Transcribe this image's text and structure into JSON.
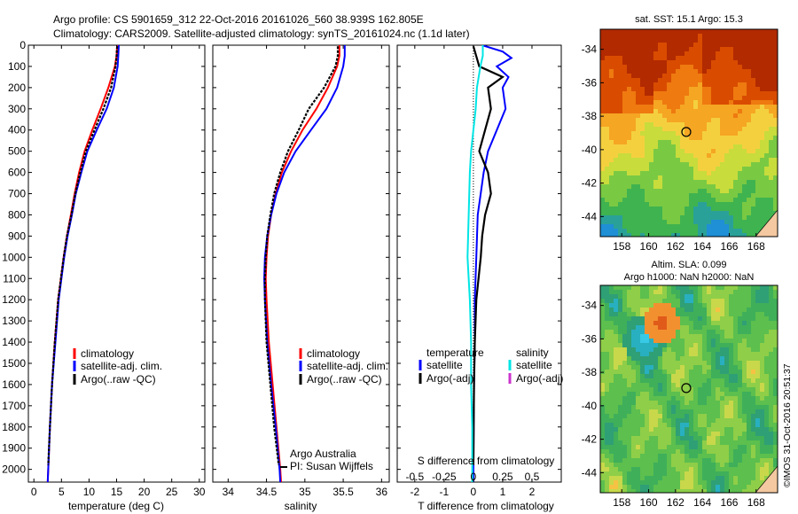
{
  "header": {
    "line1": "Argo profile: CS 5901659_312 22-Oct-2016 20161026_560 38.939S 162.805E",
    "line2": "Climatology: CARS2009. Satellite-adjusted climatology: synTS_20161024.nc (1.1d later)"
  },
  "colors": {
    "climatology": "#ff0000",
    "satellite": "#0000ff",
    "argo": "#000000",
    "s_satellite": "#00e5e5",
    "s_argo": "#cc33cc"
  },
  "chart_data": [
    {
      "type": "line",
      "name": "temperature-panel",
      "xlabel": "temperature (deg C)",
      "xlim": [
        -1,
        31
      ],
      "xticks": [
        0,
        5,
        10,
        15,
        20,
        25,
        30
      ],
      "ylim": [
        2060,
        0
      ],
      "yticks": [
        0,
        100,
        200,
        300,
        400,
        500,
        600,
        700,
        800,
        900,
        1000,
        1100,
        1200,
        1300,
        1400,
        1500,
        1600,
        1700,
        1800,
        1900,
        2000
      ],
      "legend": {
        "position": "lower-center",
        "entries": [
          "climatology",
          "satellite-adj. clim.",
          "Argo(..raw -QC)"
        ]
      },
      "series": [
        {
          "name": "climatology",
          "color": "#ff0000",
          "depth": [
            0,
            50,
            100,
            200,
            300,
            400,
            500,
            600,
            700,
            800,
            900,
            1000,
            1200,
            1400,
            1600,
            1800,
            2000,
            2060
          ],
          "values": [
            15.1,
            15.0,
            14.7,
            13.5,
            12.1,
            10.6,
            9.2,
            8.2,
            7.4,
            6.7,
            6.0,
            5.4,
            4.4,
            3.8,
            3.3,
            2.9,
            2.6,
            2.5
          ]
        },
        {
          "name": "satellite-adj. clim.",
          "color": "#0000ff",
          "depth": [
            0,
            50,
            100,
            200,
            300,
            400,
            500,
            600,
            700,
            800,
            900,
            1000,
            1200,
            1400,
            1600,
            1800,
            2000,
            2060
          ],
          "values": [
            15.4,
            15.3,
            15.2,
            14.5,
            13.2,
            11.4,
            9.7,
            8.6,
            7.6,
            6.9,
            6.1,
            5.5,
            4.5,
            3.9,
            3.3,
            2.9,
            2.6,
            2.5
          ]
        },
        {
          "name": "Argo(..raw -QC)",
          "color": "#000000",
          "depth": [
            5,
            50,
            100,
            200,
            300,
            400,
            500,
            600,
            700,
            800,
            900,
            1000,
            1200,
            1400,
            1600,
            1800,
            1980
          ],
          "values": [
            15.1,
            15.0,
            14.8,
            14.0,
            12.6,
            11.0,
            9.4,
            8.4,
            7.5,
            6.8,
            6.0,
            5.4,
            4.4,
            3.8,
            3.3,
            2.9,
            2.6
          ]
        }
      ]
    },
    {
      "type": "line",
      "name": "salinity-panel",
      "xlabel": "salinity",
      "xlim": [
        33.8,
        36.1
      ],
      "xticks": [
        34,
        34.5,
        35,
        35.5,
        36
      ],
      "ylim": [
        2060,
        0
      ],
      "legend": {
        "position": "lower-center",
        "entries": [
          "climatology",
          "satellite-adj. clim.",
          "Argo(..raw -QC)"
        ]
      },
      "annotation": [
        "Argo Australia",
        "PI: Susan Wijffels"
      ],
      "series": [
        {
          "name": "climatology",
          "color": "#ff0000",
          "depth": [
            0,
            50,
            100,
            200,
            300,
            400,
            500,
            600,
            700,
            800,
            900,
            1000,
            1100,
            1200,
            1400,
            1600,
            1800,
            2000,
            2060
          ],
          "values": [
            35.45,
            35.45,
            35.42,
            35.3,
            35.15,
            34.97,
            34.82,
            34.7,
            34.62,
            34.56,
            34.52,
            34.5,
            34.49,
            34.5,
            34.53,
            34.58,
            34.63,
            34.68,
            34.69
          ]
        },
        {
          "name": "satellite-adj. clim.",
          "color": "#0000ff",
          "depth": [
            0,
            50,
            100,
            200,
            300,
            400,
            500,
            600,
            700,
            800,
            900,
            1000,
            1100,
            1200,
            1400,
            1600,
            1800,
            2000,
            2060
          ],
          "values": [
            35.52,
            35.52,
            35.5,
            35.42,
            35.28,
            35.08,
            34.88,
            34.73,
            34.63,
            34.56,
            34.51,
            34.48,
            34.47,
            34.48,
            34.51,
            34.56,
            34.62,
            34.67,
            34.68
          ]
        },
        {
          "name": "Argo(..raw -QC)",
          "color": "#000000",
          "depth": [
            5,
            50,
            100,
            200,
            300,
            400,
            500,
            600,
            700,
            800,
            900,
            1000,
            1100,
            1200,
            1400,
            1600,
            1800,
            1980
          ],
          "values": [
            35.43,
            35.43,
            35.4,
            35.25,
            35.05,
            34.92,
            34.78,
            34.68,
            34.6,
            34.55,
            34.51,
            34.49,
            34.48,
            34.48,
            34.5,
            34.55,
            34.6,
            34.66
          ]
        }
      ]
    },
    {
      "type": "line",
      "name": "difference-panel",
      "xlabel": "T difference from climatology",
      "xlabel2": "S difference from climatology",
      "xlim": [
        -2.6,
        3
      ],
      "xticks": [
        -2,
        -1,
        0,
        1,
        2
      ],
      "xticks_s": [
        -0.5,
        -0.25,
        0,
        0.25,
        0.5
      ],
      "ylim": [
        2060,
        0
      ],
      "legend_titles": [
        "temperature",
        "salinity"
      ],
      "legend": {
        "position": "lower-center",
        "entries": [
          "satellite",
          "Argo(-adj)",
          "satellite",
          "Argo(-adj)"
        ]
      },
      "series": [
        {
          "name": "T satellite",
          "color": "#0000ff",
          "depth": [
            0,
            30,
            60,
            100,
            150,
            200,
            300,
            400,
            500,
            600,
            800,
            1000,
            1200,
            1400,
            1600,
            1800,
            2060
          ],
          "values": [
            0.3,
            1.0,
            1.3,
            0.8,
            1.2,
            1.0,
            1.1,
            0.8,
            0.5,
            0.35,
            0.15,
            0.1,
            0.05,
            0.05,
            0.02,
            0.01,
            0.0
          ]
        },
        {
          "name": "T Argo(-adj)",
          "color": "#000000",
          "depth": [
            5,
            100,
            150,
            200,
            300,
            400,
            500,
            600,
            700,
            800,
            900,
            1000,
            1200,
            1400,
            1600,
            1800,
            1980
          ],
          "values": [
            0.0,
            0.2,
            1.0,
            0.5,
            0.6,
            0.4,
            0.2,
            0.5,
            0.6,
            0.4,
            0.3,
            0.25,
            0.1,
            0.05,
            0.02,
            0.01,
            0.0
          ]
        },
        {
          "name": "S satellite",
          "color": "#00e5e5",
          "depth": [
            0,
            50,
            100,
            200,
            300,
            400,
            500,
            600,
            800,
            1000,
            1100,
            1200,
            1400,
            1600,
            1800,
            2060
          ],
          "values": [
            0.08,
            0.08,
            0.06,
            0.03,
            0.02,
            0.0,
            -0.02,
            -0.03,
            -0.04,
            -0.05,
            -0.04,
            -0.03,
            -0.02,
            -0.02,
            -0.01,
            -0.01
          ]
        }
      ]
    },
    {
      "type": "heatmap",
      "name": "sst-map",
      "title": "sat. SST: 15.1 Argo: 15.3",
      "xticks": [
        158,
        160,
        162,
        164,
        166,
        168
      ],
      "yticks": [
        -34,
        -36,
        -38,
        -40,
        -42,
        -44
      ],
      "xlim": [
        156.4,
        169.6
      ],
      "ylim": [
        -45.2,
        -32.8
      ],
      "marker": {
        "lon": 162.8,
        "lat": -38.94
      }
    },
    {
      "type": "heatmap",
      "name": "sla-map",
      "title": "Altim. SLA: 0.099",
      "title2": "Argo h1000: NaN h2000: NaN",
      "xticks": [
        158,
        160,
        162,
        164,
        166,
        168
      ],
      "yticks": [
        -34,
        -36,
        -38,
        -40,
        -42,
        -44
      ],
      "xlim": [
        156.4,
        169.6
      ],
      "ylim": [
        -45.2,
        -32.8
      ],
      "marker": {
        "lon": 162.8,
        "lat": -38.94
      }
    }
  ],
  "footer": {
    "credit": "©IMOS 31-Oct-2016 20:51:37"
  }
}
